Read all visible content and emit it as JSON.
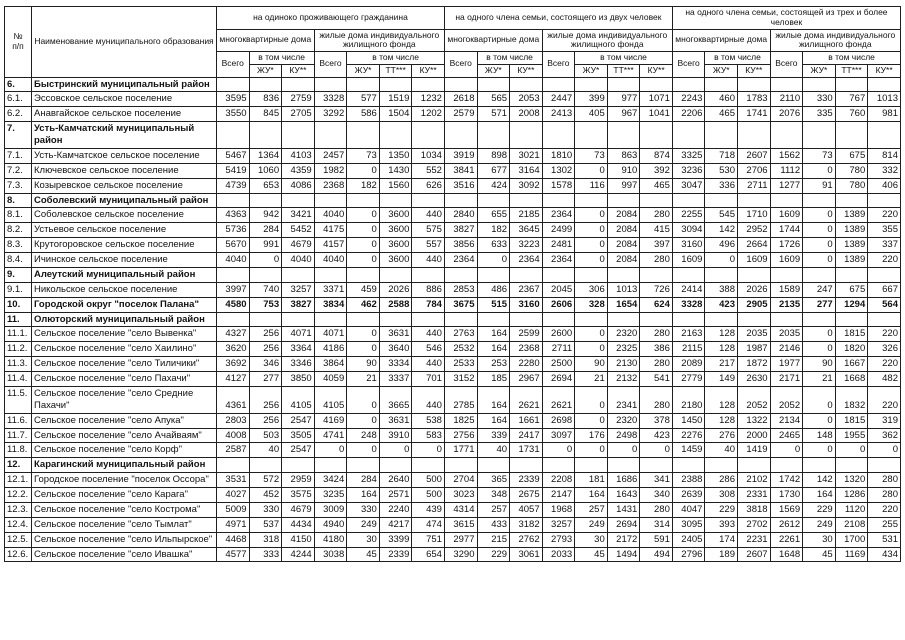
{
  "header": {
    "col_num": "№\nп/п",
    "col_name": "Наименование муниципального образования",
    "groups": [
      "на  одиноко  проживающего гражданина",
      "на  одного члена  семьи,  состоящего  из  двух человек",
      "на  одного члена  семьи,  состоящей из трех и более человек"
    ],
    "subgroup_mkd": "многоквартирные дома",
    "subgroup_ind": "жилые дома индивидуального жилищного фонда",
    "total": "Всего",
    "including": "в том числе",
    "zhu": "ЖУ*",
    "ku": "КУ**",
    "tt": "ТТ***"
  },
  "rows": [
    {
      "num": "6.",
      "name": "Быстринский  муниципальный  район",
      "section": true
    },
    {
      "num": "6.1.",
      "name": "Эссовское  сельское поселение",
      "values": [
        3595,
        836,
        2759,
        3328,
        577,
        1519,
        1232,
        2618,
        565,
        2053,
        2447,
        399,
        977,
        1071,
        2243,
        460,
        1783,
        2110,
        330,
        767,
        1013
      ]
    },
    {
      "num": "6.2.",
      "name": "Анавгайское сельское поселение",
      "values": [
        3550,
        845,
        2705,
        3292,
        586,
        1504,
        1202,
        2579,
        571,
        2008,
        2413,
        405,
        967,
        1041,
        2206,
        465,
        1741,
        2076,
        335,
        760,
        981
      ]
    },
    {
      "num": "7.",
      "name": "Усть-Камчатский  муниципальный  район",
      "section": true
    },
    {
      "num": "7.1.",
      "name": "Усть-Камчатское сельское поселение",
      "values": [
        5467,
        1364,
        4103,
        2457,
        73,
        1350,
        1034,
        3919,
        898,
        3021,
        1810,
        73,
        863,
        874,
        3325,
        718,
        2607,
        1562,
        73,
        675,
        814
      ]
    },
    {
      "num": "7.2.",
      "name": "Ключевское сельское поселение",
      "values": [
        5419,
        1060,
        4359,
        1982,
        0,
        1430,
        552,
        3841,
        677,
        3164,
        1302,
        0,
        910,
        392,
        3236,
        530,
        2706,
        1112,
        0,
        780,
        332
      ]
    },
    {
      "num": "7.3.",
      "name": "Козыревское  сельское поселение",
      "values": [
        4739,
        653,
        4086,
        2368,
        182,
        1560,
        626,
        3516,
        424,
        3092,
        1578,
        116,
        997,
        465,
        3047,
        336,
        2711,
        1277,
        91,
        780,
        406
      ]
    },
    {
      "num": "8.",
      "name": "Соболевский  муниципальный  район",
      "section": true
    },
    {
      "num": "8.1.",
      "name": "Соболевское сельское поселение",
      "values": [
        4363,
        942,
        3421,
        4040,
        0,
        3600,
        440,
        2840,
        655,
        2185,
        2364,
        0,
        2084,
        280,
        2255,
        545,
        1710,
        1609,
        0,
        1389,
        220
      ]
    },
    {
      "num": "8.2.",
      "name": "Устьевое  сельское поселение",
      "values": [
        5736,
        284,
        5452,
        4175,
        0,
        3600,
        575,
        3827,
        182,
        3645,
        2499,
        0,
        2084,
        415,
        3094,
        142,
        2952,
        1744,
        0,
        1389,
        355
      ]
    },
    {
      "num": "8.3.",
      "name": "Крутогоровское сельское поселение",
      "values": [
        5670,
        991,
        4679,
        4157,
        0,
        3600,
        557,
        3856,
        633,
        3223,
        2481,
        0,
        2084,
        397,
        3160,
        496,
        2664,
        1726,
        0,
        1389,
        337
      ]
    },
    {
      "num": "8.4.",
      "name": "Ичинское  сельское поселение",
      "values": [
        4040,
        0,
        4040,
        4040,
        0,
        3600,
        440,
        2364,
        0,
        2364,
        2364,
        0,
        2084,
        280,
        1609,
        0,
        1609,
        1609,
        0,
        1389,
        220
      ]
    },
    {
      "num": "9.",
      "name": "Алеутский муниципальный район",
      "section": true
    },
    {
      "num": "9.1.",
      "name": "Никольское  сельское поселение",
      "values": [
        3997,
        740,
        3257,
        3371,
        459,
        2026,
        886,
        2853,
        486,
        2367,
        2045,
        306,
        1013,
        726,
        2414,
        388,
        2026,
        1589,
        247,
        675,
        667
      ]
    },
    {
      "num": "10.",
      "name": "Городской округ  \"поселок Палана\"",
      "bold": true,
      "values": [
        4580,
        753,
        3827,
        3834,
        462,
        2588,
        784,
        3675,
        515,
        3160,
        2606,
        328,
        1654,
        624,
        3328,
        423,
        2905,
        2135,
        277,
        1294,
        564
      ]
    },
    {
      "num": "11.",
      "name": "Олюторский  муниципальный район",
      "section": true
    },
    {
      "num": "11.1.",
      "name": "Сельское поселение \"село Вывенка\"",
      "values": [
        4327,
        256,
        4071,
        4071,
        0,
        3631,
        440,
        2763,
        164,
        2599,
        2600,
        0,
        2320,
        280,
        2163,
        128,
        2035,
        2035,
        0,
        1815,
        220
      ]
    },
    {
      "num": "11.2.",
      "name": "Сельское поселение \"село Хаилино\"",
      "values": [
        3620,
        256,
        3364,
        4186,
        0,
        3640,
        546,
        2532,
        164,
        2368,
        2711,
        0,
        2325,
        386,
        2115,
        128,
        1987,
        2146,
        0,
        1820,
        326
      ]
    },
    {
      "num": "11.3.",
      "name": "Сельское поселение \"село Тиличики\"",
      "values": [
        3692,
        346,
        3346,
        3864,
        90,
        3334,
        440,
        2533,
        253,
        2280,
        2500,
        90,
        2130,
        280,
        2089,
        217,
        1872,
        1977,
        90,
        1667,
        220
      ]
    },
    {
      "num": "11.4.",
      "name": "Сельское поселение \"село Пахачи\"",
      "values": [
        4127,
        277,
        3850,
        4059,
        21,
        3337,
        701,
        3152,
        185,
        2967,
        2694,
        21,
        2132,
        541,
        2779,
        149,
        2630,
        2171,
        21,
        1668,
        482
      ]
    },
    {
      "num": "11.5.",
      "name": "Сельское поселение \"село Средние Пахачи\"",
      "values": [
        4361,
        256,
        4105,
        4105,
        0,
        3665,
        440,
        2785,
        164,
        2621,
        2621,
        0,
        2341,
        280,
        2180,
        128,
        2052,
        2052,
        0,
        1832,
        220
      ]
    },
    {
      "num": "11.6.",
      "name": "Сельское поселение \"село Апука\"",
      "values": [
        2803,
        256,
        2547,
        4169,
        0,
        3631,
        538,
        1825,
        164,
        1661,
        2698,
        0,
        2320,
        378,
        1450,
        128,
        1322,
        2134,
        0,
        1815,
        319
      ]
    },
    {
      "num": "11.7.",
      "name": "Сельское поселение \"село Ачайваям\"",
      "values": [
        4008,
        503,
        3505,
        4741,
        248,
        3910,
        583,
        2756,
        339,
        2417,
        3097,
        176,
        2498,
        423,
        2276,
        276,
        2000,
        2465,
        148,
        1955,
        362
      ]
    },
    {
      "num": "11.8.",
      "name": "Сельское поселение \"село Корф\"",
      "values": [
        2587,
        40,
        2547,
        0,
        0,
        0,
        0,
        1771,
        40,
        1731,
        0,
        0,
        0,
        0,
        1459,
        40,
        1419,
        0,
        0,
        0,
        0
      ]
    },
    {
      "num": "12.",
      "name": "Карагинский  муниципальный  район",
      "section": true
    },
    {
      "num": "12.1.",
      "name": "Городское поселение \"поселок  Оссора\"",
      "values": [
        3531,
        572,
        2959,
        3424,
        284,
        2640,
        500,
        2704,
        365,
        2339,
        2208,
        181,
        1686,
        341,
        2388,
        286,
        2102,
        1742,
        142,
        1320,
        280
      ]
    },
    {
      "num": "12.2.",
      "name": "Сельское поселение \"село Карага\"",
      "values": [
        4027,
        452,
        3575,
        3235,
        164,
        2571,
        500,
        3023,
        348,
        2675,
        2147,
        164,
        1643,
        340,
        2639,
        308,
        2331,
        1730,
        164,
        1286,
        280
      ]
    },
    {
      "num": "12.3.",
      "name": "Сельское поселение \"село Кострома\"",
      "values": [
        5009,
        330,
        4679,
        3009,
        330,
        2240,
        439,
        4314,
        257,
        4057,
        1968,
        257,
        1431,
        280,
        4047,
        229,
        3818,
        1569,
        229,
        1120,
        220
      ]
    },
    {
      "num": "12.4.",
      "name": "Сельское поселение \"село Тымлат\"",
      "values": [
        4971,
        537,
        4434,
        4940,
        249,
        4217,
        474,
        3615,
        433,
        3182,
        3257,
        249,
        2694,
        314,
        3095,
        393,
        2702,
        2612,
        249,
        2108,
        255
      ]
    },
    {
      "num": "12.5.",
      "name": "Сельское поселение \"село Ильпырское\"",
      "values": [
        4468,
        318,
        4150,
        4180,
        30,
        3399,
        751,
        2977,
        215,
        2762,
        2793,
        30,
        2172,
        591,
        2405,
        174,
        2231,
        2261,
        30,
        1700,
        531
      ]
    },
    {
      "num": "12.6.",
      "name": "Сельское поселение \"село Ивашка\"",
      "values": [
        4577,
        333,
        4244,
        3038,
        45,
        2339,
        654,
        3290,
        229,
        3061,
        2033,
        45,
        1494,
        494,
        2796,
        189,
        2607,
        1648,
        45,
        1169,
        434
      ]
    }
  ]
}
